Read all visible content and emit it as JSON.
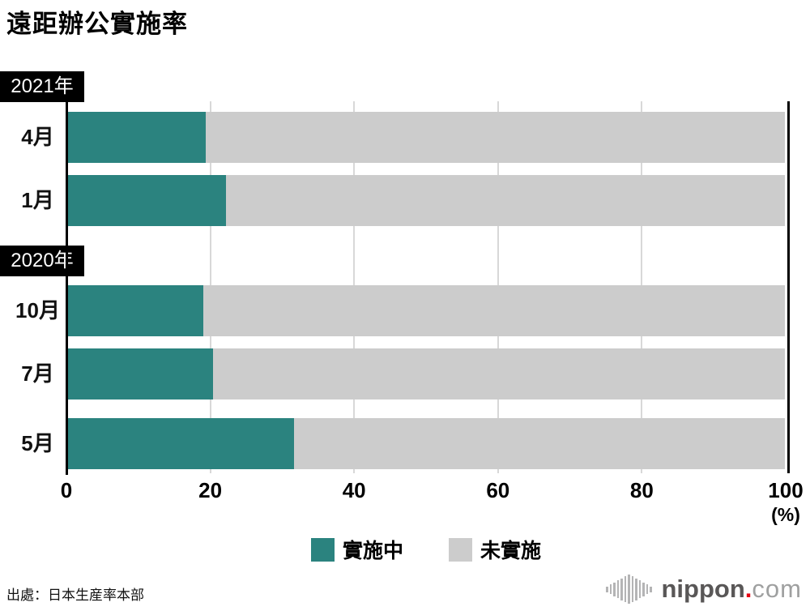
{
  "chart_data": {
    "type": "bar",
    "orientation": "horizontal",
    "stacked": true,
    "title": "遠距辦公實施率",
    "x_axis": {
      "range": [
        0,
        100
      ],
      "ticks": [
        "0",
        "20",
        "40",
        "60",
        "80",
        "100"
      ],
      "unit_label": "(%)",
      "grid": true
    },
    "colors": {
      "implementing": "#2b837f",
      "not_implementing": "#cccccc"
    },
    "legend": [
      {
        "label": "實施中"
      },
      {
        "label": "未實施"
      }
    ],
    "legend_position": "bottom-center",
    "year_groups": [
      {
        "year_label": "2021年",
        "rows": [
          {
            "label": "4月",
            "implementing": 19.2,
            "not_implementing": 80.8
          },
          {
            "label": "1月",
            "implementing": 22.0,
            "not_implementing": 78.0
          }
        ]
      },
      {
        "year_label": "2020年",
        "rows": [
          {
            "label": "10月",
            "implementing": 18.9,
            "not_implementing": 81.1
          },
          {
            "label": "7月",
            "implementing": 20.2,
            "not_implementing": 79.8
          },
          {
            "label": "5月",
            "implementing": 31.5,
            "not_implementing": 68.5
          }
        ]
      }
    ]
  },
  "footer": {
    "source": "出處：日本生産率本部",
    "logo": {
      "primary": "nippon",
      "dot": ".",
      "secondary": "com"
    }
  }
}
